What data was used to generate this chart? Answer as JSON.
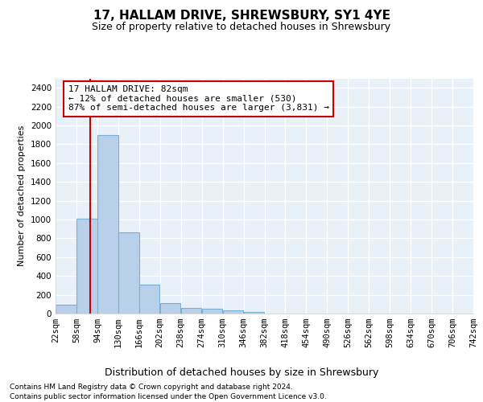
{
  "title": "17, HALLAM DRIVE, SHREWSBURY, SY1 4YE",
  "subtitle": "Size of property relative to detached houses in Shrewsbury",
  "xlabel": "Distribution of detached houses by size in Shrewsbury",
  "ylabel": "Number of detached properties",
  "footnote1": "Contains HM Land Registry data © Crown copyright and database right 2024.",
  "footnote2": "Contains public sector information licensed under the Open Government Licence v3.0.",
  "bin_edges": [
    22,
    58,
    94,
    130,
    166,
    202,
    238,
    274,
    310,
    346,
    382,
    418,
    454,
    490,
    526,
    562,
    598,
    634,
    670,
    706,
    742
  ],
  "bin_heights": [
    90,
    1010,
    1900,
    860,
    310,
    115,
    60,
    50,
    30,
    20,
    0,
    0,
    0,
    0,
    0,
    0,
    0,
    0,
    0,
    0
  ],
  "bar_color": "#b8d0ea",
  "bar_edge_color": "#7aafd4",
  "property_size": 82,
  "property_label": "17 HALLAM DRIVE: 82sqm",
  "annotation_line1": "← 12% of detached houses are smaller (530)",
  "annotation_line2": "87% of semi-detached houses are larger (3,831) →",
  "vline_color": "#cc0000",
  "annotation_box_facecolor": "#ffffff",
  "annotation_box_edgecolor": "#cc0000",
  "ylim": [
    0,
    2500
  ],
  "yticks": [
    0,
    200,
    400,
    600,
    800,
    1000,
    1200,
    1400,
    1600,
    1800,
    2000,
    2200,
    2400
  ],
  "fig_facecolor": "#ffffff",
  "plot_bg_color": "#e8f0f8",
  "grid_color": "#ffffff",
  "title_fontsize": 11,
  "subtitle_fontsize": 9,
  "xlabel_fontsize": 9,
  "ylabel_fontsize": 8,
  "tick_fontsize": 7.5,
  "annotation_fontsize": 8,
  "footnote_fontsize": 6.5
}
